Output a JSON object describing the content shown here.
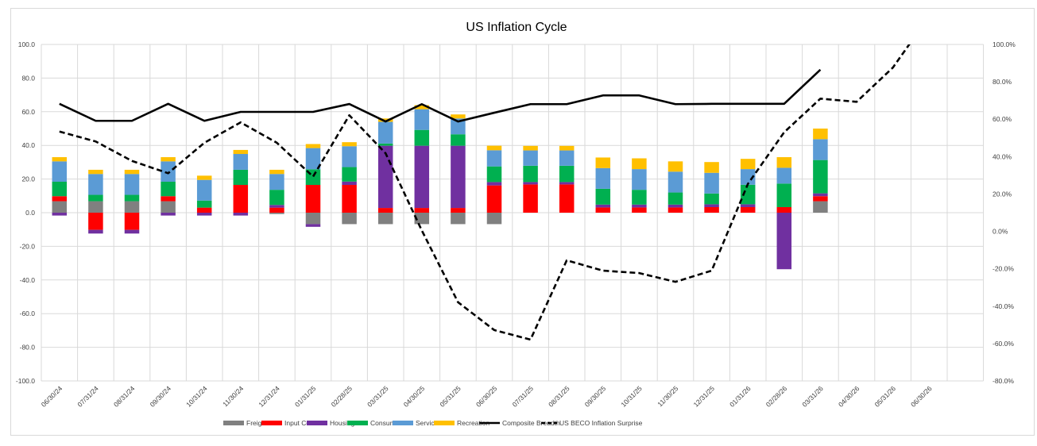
{
  "chart_data": {
    "type": "bar",
    "title": "US Inflation Cycle",
    "xlabel": "",
    "ylabel": "",
    "ylim": [
      -100,
      100
    ],
    "y_ticks": [
      "100.0",
      "80.0",
      "60.0",
      "40.0",
      "20.0",
      "0.0",
      "-20.0",
      "-40.0",
      "-60.0",
      "-80.0",
      "-100.0"
    ],
    "y2lim": [
      -80,
      100
    ],
    "y2_ticks": [
      "100.0%",
      "80.0%",
      "60.0%",
      "40.0%",
      "20.0%",
      "0.0%",
      "-20.0%",
      "-40.0%",
      "-60.0%",
      "-80.0%"
    ],
    "grid": true,
    "legend_position": "bottom",
    "categories": [
      "06/30/24",
      "07/31/24",
      "08/31/24",
      "09/30/24",
      "10/31/24",
      "11/30/24",
      "12/31/24",
      "01/31/25",
      "02/28/25",
      "03/31/25",
      "04/30/25",
      "05/31/25",
      "06/30/25",
      "07/31/25",
      "08/31/25",
      "09/30/25",
      "10/31/25",
      "11/30/25",
      "12/31/25",
      "01/31/26",
      "02/28/26",
      "03/31/26",
      "04/30/26",
      "05/31/26",
      "06/30/26"
    ],
    "series": [
      {
        "name": "Freight",
        "type": "stacked-bar",
        "color": "#808080",
        "values": [
          6.8,
          6.8,
          6.8,
          6.8,
          0,
          0,
          -0.8,
          -6.8,
          -6.8,
          -6.8,
          -6.8,
          -6.8,
          -6.8,
          0,
          0,
          0,
          0,
          0,
          0,
          0,
          0,
          6.8,
          0,
          0,
          0
        ]
      },
      {
        "name": "Input Cost",
        "type": "stacked-bar",
        "color": "#ff0000",
        "values": [
          3.0,
          -10.2,
          -10.2,
          3.0,
          3.0,
          16.5,
          3.0,
          16.5,
          16.5,
          2.8,
          2.8,
          2.8,
          16.2,
          16.8,
          16.8,
          3.1,
          3.1,
          3.1,
          3.3,
          3.3,
          3.3,
          3.0,
          0,
          0,
          0
        ]
      },
      {
        "name": "Housing",
        "type": "stacked-bar",
        "color": "#7030a0",
        "values": [
          -1.7,
          -2.2,
          -2.2,
          -1.7,
          -1.7,
          -1.7,
          1.6,
          -1.6,
          2.0,
          37.0,
          37.0,
          37.0,
          2.0,
          1.4,
          1.4,
          1.7,
          1.7,
          1.7,
          1.7,
          1.7,
          -33.6,
          1.7,
          0,
          0,
          0
        ]
      },
      {
        "name": "Consumer",
        "type": "stacked-bar",
        "color": "#00b050",
        "values": [
          8.6,
          3.8,
          3.8,
          8.6,
          4.2,
          9.0,
          9.0,
          9.3,
          8.6,
          1.3,
          9.4,
          6.8,
          9.3,
          9.7,
          9.7,
          9.4,
          8.8,
          7.2,
          6.4,
          11.6,
          14.0,
          19.8,
          0,
          0,
          0
        ]
      },
      {
        "name": "Services",
        "type": "stacked-bar",
        "color": "#5b9bd5",
        "values": [
          12.1,
          12.4,
          12.4,
          12.1,
          12.3,
          9.4,
          9.4,
          12.6,
          12.4,
          12.9,
          12.3,
          9.4,
          9.6,
          9.1,
          9.1,
          12.3,
          12.3,
          12.4,
          12.3,
          9.3,
          9.4,
          12.4,
          0,
          0,
          0
        ]
      },
      {
        "name": "Recreation",
        "type": "stacked-bar",
        "color": "#ffc000",
        "values": [
          2.5,
          2.5,
          2.5,
          2.5,
          2.5,
          2.4,
          2.5,
          2.4,
          2.4,
          2.0,
          2.4,
          2.4,
          2.7,
          2.7,
          2.7,
          6.3,
          6.4,
          6.1,
          6.4,
          6.1,
          6.3,
          6.3,
          0,
          0,
          0
        ]
      },
      {
        "name": "Composite Breadth",
        "type": "line",
        "axis": "left",
        "color": "#000000",
        "values": [
          64.7,
          54.6,
          54.6,
          64.7,
          54.6,
          59.9,
          59.9,
          59.9,
          64.6,
          54.2,
          64.5,
          54.2,
          59.4,
          64.5,
          64.5,
          69.7,
          69.7,
          64.5,
          64.7,
          64.7,
          64.7,
          85.0,
          null,
          null,
          null
        ]
      },
      {
        "name": "US BECO Inflation Surprise",
        "type": "dashed-line",
        "axis": "right",
        "unit": "%",
        "color": "#000000",
        "values": [
          53.4,
          48.1,
          37.7,
          31.1,
          47.4,
          58.3,
          47.4,
          29.3,
          62.1,
          41.8,
          0.5,
          -37.9,
          -52.8,
          -57.9,
          -15.5,
          -21.0,
          -22.3,
          -27.0,
          -21.0,
          25.4,
          53.0,
          71.0,
          69.3,
          87.6,
          115.0
        ]
      }
    ]
  }
}
